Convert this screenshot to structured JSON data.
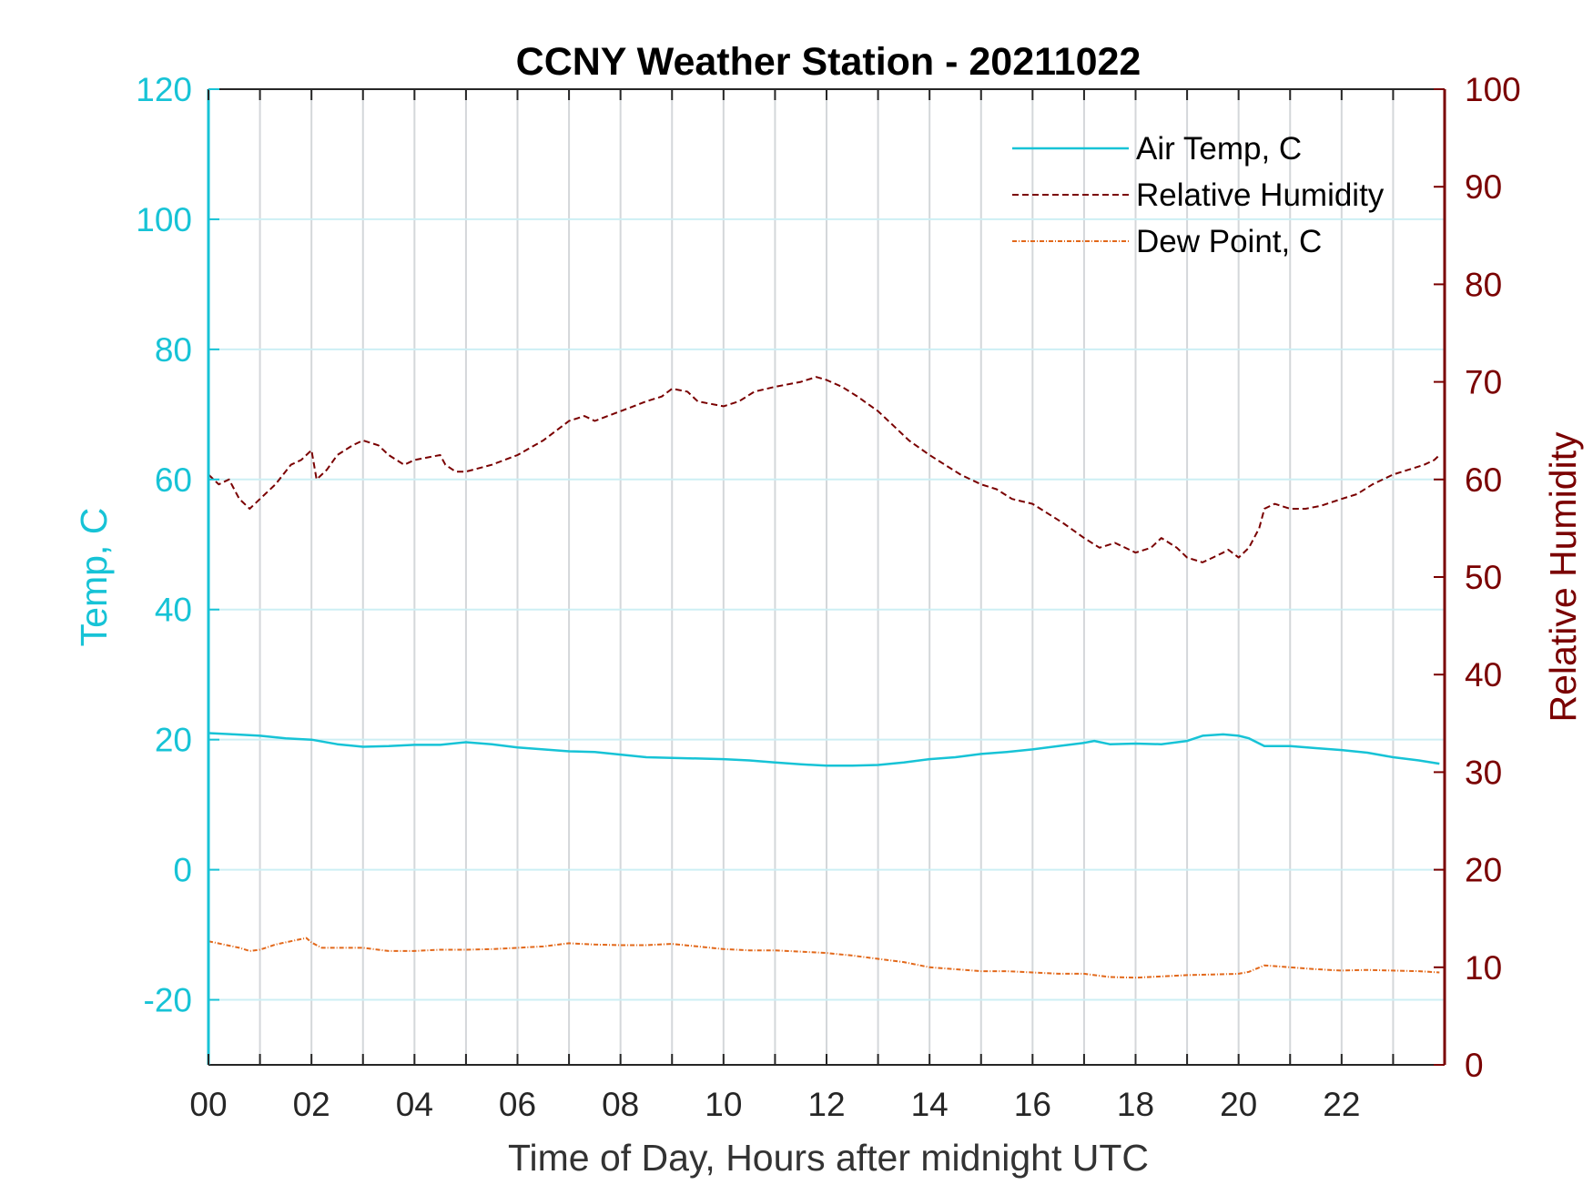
{
  "chart_data": {
    "type": "line",
    "title": "CCNY Weather Station - 20211022",
    "xlabel": "Time of Day, Hours after midnight UTC",
    "ylabel_left": "Temp, C",
    "ylabel_right": "Relative Humidity",
    "xlim": [
      0,
      24
    ],
    "ylim_left": [
      -30,
      120
    ],
    "ylim_right": [
      0,
      100
    ],
    "x_ticks": [
      0,
      2,
      4,
      6,
      8,
      10,
      12,
      14,
      16,
      18,
      20,
      22
    ],
    "x_tick_labels": [
      "00",
      "02",
      "04",
      "06",
      "08",
      "10",
      "12",
      "14",
      "16",
      "18",
      "20",
      "22"
    ],
    "y_left_ticks": [
      -20,
      0,
      20,
      40,
      60,
      80,
      100,
      120
    ],
    "y_left_tick_labels": [
      "-20",
      "0",
      "20",
      "40",
      "60",
      "80",
      "100",
      "120"
    ],
    "y_right_ticks": [
      0,
      10,
      20,
      30,
      40,
      50,
      60,
      70,
      80,
      90,
      100
    ],
    "y_right_tick_labels": [
      "0",
      "10",
      "20",
      "30",
      "40",
      "50",
      "60",
      "70",
      "80",
      "90",
      "100"
    ],
    "grid": true,
    "legend_position": "top-right",
    "colors": {
      "left_axis": "#17c3d6",
      "right_axis": "#7a0000",
      "air_temp": "#17c3d6",
      "humidity": "#7a0000",
      "dew_point": "#e2681a",
      "vertical_grid": "#d4d7da",
      "horizontal_grid": "#cdeff4"
    },
    "series": [
      {
        "name": "Air Temp, C",
        "axis": "left",
        "style": "solid",
        "x": [
          0,
          0.5,
          1,
          1.5,
          2,
          2.5,
          3,
          3.5,
          4,
          4.5,
          5,
          5.5,
          6,
          6.5,
          7,
          7.5,
          8,
          8.5,
          9,
          9.5,
          10,
          10.5,
          11,
          11.5,
          12,
          12.5,
          13,
          13.5,
          14,
          14.5,
          15,
          15.5,
          16,
          16.5,
          17,
          17.2,
          17.5,
          18,
          18.5,
          19,
          19.3,
          19.7,
          20,
          20.2,
          20.5,
          21,
          21.5,
          22,
          22.5,
          23,
          23.5,
          23.9
        ],
        "y": [
          21,
          20.8,
          20.6,
          20.2,
          20,
          19.3,
          18.9,
          19,
          19.2,
          19.2,
          19.6,
          19.3,
          18.8,
          18.5,
          18.2,
          18.1,
          17.7,
          17.3,
          17.2,
          17.1,
          17,
          16.8,
          16.5,
          16.2,
          16,
          16,
          16.1,
          16.5,
          17,
          17.3,
          17.8,
          18.1,
          18.5,
          19,
          19.5,
          19.8,
          19.3,
          19.4,
          19.3,
          19.8,
          20.6,
          20.8,
          20.6,
          20.2,
          19,
          19,
          18.7,
          18.4,
          18,
          17.3,
          16.8,
          16.3
        ]
      },
      {
        "name": "Relative Humidity",
        "axis": "right",
        "style": "dashed",
        "x": [
          0,
          0.2,
          0.4,
          0.6,
          0.8,
          1,
          1.3,
          1.6,
          1.8,
          2,
          2.1,
          2.3,
          2.5,
          2.8,
          3,
          3.3,
          3.5,
          3.8,
          4,
          4.3,
          4.5,
          4.6,
          4.8,
          5,
          5.5,
          6,
          6.5,
          7,
          7.3,
          7.5,
          8,
          8.5,
          8.8,
          9,
          9.3,
          9.5,
          10,
          10.3,
          10.6,
          11,
          11.5,
          11.8,
          12,
          12.3,
          12.6,
          13,
          13.3,
          13.6,
          14,
          14.3,
          14.6,
          15,
          15.3,
          15.6,
          16,
          16.3,
          16.6,
          17,
          17.3,
          17.6,
          18,
          18.3,
          18.5,
          18.8,
          19,
          19.3,
          19.5,
          19.7,
          19.8,
          20,
          20.2,
          20.4,
          20.5,
          20.7,
          21,
          21.3,
          21.6,
          22,
          22.3,
          22.6,
          23,
          23.3,
          23.6,
          23.8,
          23.9
        ],
        "y": [
          60.5,
          59.5,
          60,
          58,
          57,
          58,
          59.5,
          61.5,
          62,
          63,
          60,
          61,
          62.5,
          63.5,
          64,
          63.5,
          62.5,
          61.5,
          62,
          62.3,
          62.5,
          61.5,
          60.8,
          60.8,
          61.5,
          62.5,
          64,
          66,
          66.5,
          66,
          67,
          68,
          68.5,
          69.3,
          69,
          68,
          67.5,
          68,
          69,
          69.5,
          70,
          70.5,
          70.2,
          69.5,
          68.5,
          67,
          65.5,
          64,
          62.5,
          61.5,
          60.5,
          59.5,
          59,
          58,
          57.5,
          56.5,
          55.5,
          54,
          53,
          53.5,
          52.5,
          53,
          54,
          53,
          52,
          51.5,
          52,
          52.5,
          52.8,
          52,
          53,
          55,
          57,
          57.5,
          57,
          57,
          57.3,
          58,
          58.5,
          59.5,
          60.5,
          61,
          61.5,
          62,
          62.5
        ]
      },
      {
        "name": "Dew Point, C",
        "axis": "left",
        "style": "dashdot",
        "x": [
          0,
          0.3,
          0.6,
          0.8,
          1,
          1.3,
          1.6,
          1.9,
          2,
          2.2,
          2.5,
          3,
          3.5,
          4,
          4.5,
          5,
          5.5,
          6,
          6.5,
          7,
          7.5,
          8,
          8.5,
          9,
          9.5,
          10,
          10.5,
          11,
          11.5,
          12,
          12.5,
          13,
          13.5,
          14,
          14.5,
          15,
          15.5,
          16,
          16.5,
          17,
          17.5,
          18,
          18.5,
          19,
          19.5,
          20,
          20.2,
          20.5,
          21,
          21.5,
          22,
          22.5,
          23,
          23.5,
          23.9
        ],
        "y": [
          -11,
          -11.5,
          -12,
          -12.5,
          -12.3,
          -11.5,
          -11,
          -10.5,
          -11.2,
          -12,
          -12,
          -12,
          -12.5,
          -12.5,
          -12.3,
          -12.3,
          -12.2,
          -12,
          -11.8,
          -11.3,
          -11.5,
          -11.6,
          -11.6,
          -11.4,
          -11.8,
          -12.2,
          -12.4,
          -12.4,
          -12.6,
          -12.8,
          -13.2,
          -13.7,
          -14.2,
          -15,
          -15.3,
          -15.6,
          -15.6,
          -15.8,
          -16,
          -16,
          -16.5,
          -16.6,
          -16.4,
          -16.2,
          -16.1,
          -16,
          -15.7,
          -14.7,
          -15,
          -15.3,
          -15.5,
          -15.4,
          -15.5,
          -15.6,
          -15.8
        ]
      }
    ]
  }
}
